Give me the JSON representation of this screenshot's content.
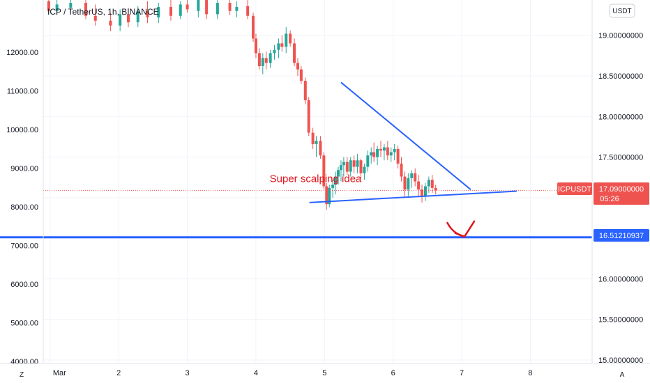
{
  "header": {
    "symbol_line": "ICP / TetherUS, 1h, BINANCE"
  },
  "axis": {
    "currency_button": "USDT",
    "scale_mode_button": "A",
    "zoom_button": "Z"
  },
  "colors": {
    "up": "#26a69a",
    "down": "#ef5350",
    "trend": "#2962ff",
    "level": "#2962ff",
    "annotation": "#e0151c",
    "last_price": "#ef5350"
  },
  "chart_data": {
    "type": "candlestick",
    "title": "ICP / TetherUS, 1h, BINANCE",
    "xlabel": "",
    "ylabel": "",
    "x_tick_labels": [
      "Mar",
      "2",
      "3",
      "4",
      "5",
      "6",
      "7",
      "8"
    ],
    "x_ticks_day": [
      1,
      2,
      3,
      4,
      5,
      6,
      7,
      8
    ],
    "xlim_day": [
      0.9,
      8.9
    ],
    "left_axis": {
      "ticks": [
        4000,
        5000,
        6000,
        7000,
        8000,
        9000,
        10000,
        11000,
        12000
      ],
      "tick_labels": [
        "4000.00",
        "5000.00",
        "6000.00",
        "7000.00",
        "8000.00",
        "9000.00",
        "10000.00",
        "11000.00",
        "12000.00"
      ],
      "ylim": [
        3950,
        13350
      ]
    },
    "right_axis": {
      "ticks": [
        15.0,
        15.5,
        16.0,
        16.5,
        17.0,
        17.5,
        18.0,
        18.5,
        19.0
      ],
      "tick_labels": [
        "15.00000000",
        "15.50000000",
        "16.00000000",
        "16.50000000",
        "17.00000000",
        "17.50000000",
        "18.00000000",
        "18.50000000",
        "19.00000000"
      ],
      "ylim": [
        14.957,
        19.435
      ]
    },
    "grid": true,
    "last_price": {
      "symbol": "ICPUSDT",
      "value": 17.09,
      "label": "17.09000000",
      "countdown": "05:26"
    },
    "horizontal_level": {
      "value": 16.5121,
      "label": "16.51210937"
    },
    "trendlines": [
      {
        "name": "descending",
        "from": [
          5.24,
          18.42
        ],
        "to": [
          7.13,
          17.1
        ]
      },
      {
        "name": "support",
        "from": [
          4.78,
          16.94
        ],
        "to": [
          7.8,
          17.08
        ]
      }
    ],
    "annotation": {
      "text": "Super scalping idea",
      "day": 4.2,
      "price": 17.19
    },
    "arrow": {
      "from": [
        6.79,
        16.69
      ],
      "to": [
        7.04,
        16.52
      ]
    },
    "candles_note": "day = fractional date in March (visible axis); o/h/l/c on the right-axis USDT price scale",
    "candles": [
      [
        0.98,
        19.42,
        19.46,
        19.28,
        19.3
      ],
      [
        1.1,
        19.3,
        19.45,
        19.25,
        19.38
      ],
      [
        1.3,
        19.34,
        19.52,
        19.28,
        19.4
      ],
      [
        1.52,
        19.4,
        19.5,
        19.2,
        19.24
      ],
      [
        1.66,
        19.24,
        19.38,
        19.12,
        19.18
      ],
      [
        1.88,
        19.18,
        19.28,
        19.05,
        19.12
      ],
      [
        2.02,
        19.12,
        19.32,
        19.05,
        19.26
      ],
      [
        2.14,
        19.26,
        19.34,
        19.1,
        19.16
      ],
      [
        2.28,
        19.16,
        19.36,
        19.1,
        19.3
      ],
      [
        2.42,
        19.3,
        19.42,
        19.15,
        19.22
      ],
      [
        2.58,
        19.22,
        19.4,
        19.15,
        19.35
      ],
      [
        2.76,
        19.35,
        19.45,
        19.18,
        19.24
      ],
      [
        2.9,
        19.24,
        19.42,
        19.2,
        19.38
      ],
      [
        3.0,
        19.38,
        19.48,
        19.28,
        19.32
      ],
      [
        3.16,
        19.3,
        19.5,
        19.22,
        19.44
      ],
      [
        3.28,
        19.44,
        19.5,
        19.2,
        19.26
      ],
      [
        3.44,
        19.26,
        19.46,
        19.2,
        19.4
      ],
      [
        3.62,
        19.4,
        19.45,
        19.25,
        19.3
      ],
      [
        3.72,
        19.3,
        19.42,
        19.22,
        19.35
      ],
      [
        3.88,
        19.36,
        19.44,
        19.2,
        19.24
      ],
      [
        3.96,
        19.24,
        19.28,
        18.92,
        18.96
      ],
      [
        4.0,
        18.96,
        19.02,
        18.72,
        18.78
      ],
      [
        4.05,
        18.78,
        18.84,
        18.58,
        18.62
      ],
      [
        4.1,
        18.62,
        18.78,
        18.52,
        18.72
      ],
      [
        4.15,
        18.72,
        18.8,
        18.58,
        18.66
      ],
      [
        4.21,
        18.66,
        18.82,
        18.6,
        18.78
      ],
      [
        4.27,
        18.78,
        18.88,
        18.7,
        18.82
      ],
      [
        4.33,
        18.82,
        18.96,
        18.72,
        18.9
      ],
      [
        4.38,
        18.9,
        19.0,
        18.8,
        18.86
      ],
      [
        4.44,
        18.86,
        19.1,
        18.78,
        19.02
      ],
      [
        4.5,
        19.02,
        19.06,
        18.86,
        18.9
      ],
      [
        4.56,
        18.9,
        18.96,
        18.62,
        18.66
      ],
      [
        4.61,
        18.66,
        18.72,
        18.5,
        18.58
      ],
      [
        4.66,
        18.58,
        18.62,
        18.4,
        18.44
      ],
      [
        4.72,
        18.44,
        18.48,
        18.15,
        18.2
      ],
      [
        4.77,
        18.2,
        18.24,
        17.76,
        17.8
      ],
      [
        4.83,
        17.8,
        17.86,
        17.6,
        17.66
      ],
      [
        4.88,
        17.66,
        17.76,
        17.5,
        17.7
      ],
      [
        4.94,
        17.7,
        17.76,
        17.48,
        17.52
      ],
      [
        4.99,
        17.52,
        17.56,
        17.1,
        17.14
      ],
      [
        5.03,
        17.14,
        17.18,
        16.85,
        16.92
      ],
      [
        5.07,
        16.92,
        17.16,
        16.88,
        17.12
      ],
      [
        5.12,
        17.12,
        17.22,
        17.0,
        17.16
      ],
      [
        5.16,
        17.16,
        17.32,
        17.04,
        17.26
      ],
      [
        5.2,
        17.26,
        17.38,
        17.16,
        17.34
      ],
      [
        5.24,
        17.34,
        17.46,
        17.2,
        17.4
      ],
      [
        5.28,
        17.4,
        17.5,
        17.26,
        17.44
      ],
      [
        5.33,
        17.44,
        17.5,
        17.28,
        17.32
      ],
      [
        5.38,
        17.32,
        17.5,
        17.26,
        17.46
      ],
      [
        5.43,
        17.46,
        17.52,
        17.3,
        17.38
      ],
      [
        5.48,
        17.38,
        17.54,
        17.3,
        17.46
      ],
      [
        5.53,
        17.46,
        17.48,
        17.24,
        17.3
      ],
      [
        5.58,
        17.3,
        17.42,
        17.22,
        17.38
      ],
      [
        5.63,
        17.38,
        17.58,
        17.32,
        17.52
      ],
      [
        5.68,
        17.52,
        17.62,
        17.42,
        17.56
      ],
      [
        5.72,
        17.56,
        17.68,
        17.44,
        17.5
      ],
      [
        5.77,
        17.5,
        17.64,
        17.4,
        17.6
      ],
      [
        5.82,
        17.6,
        17.7,
        17.5,
        17.58
      ],
      [
        5.87,
        17.58,
        17.66,
        17.46,
        17.62
      ],
      [
        5.92,
        17.62,
        17.7,
        17.46,
        17.52
      ],
      [
        5.97,
        17.52,
        17.62,
        17.44,
        17.56
      ],
      [
        6.02,
        17.56,
        17.66,
        17.46,
        17.6
      ],
      [
        6.07,
        17.6,
        17.64,
        17.36,
        17.42
      ],
      [
        6.12,
        17.42,
        17.5,
        17.2,
        17.26
      ],
      [
        6.17,
        17.26,
        17.32,
        17.0,
        17.1
      ],
      [
        6.22,
        17.1,
        17.3,
        17.02,
        17.24
      ],
      [
        6.27,
        17.24,
        17.34,
        17.12,
        17.3
      ],
      [
        6.32,
        17.3,
        17.36,
        17.14,
        17.2
      ],
      [
        6.37,
        17.2,
        17.28,
        17.02,
        17.1
      ],
      [
        6.42,
        17.1,
        17.16,
        16.94,
        17.02
      ],
      [
        6.47,
        17.02,
        17.18,
        16.96,
        17.14
      ],
      [
        6.52,
        17.14,
        17.26,
        17.06,
        17.22
      ],
      [
        6.57,
        17.22,
        17.28,
        17.06,
        17.12
      ],
      [
        6.62,
        17.12,
        17.16,
        17.04,
        17.09
      ]
    ]
  }
}
